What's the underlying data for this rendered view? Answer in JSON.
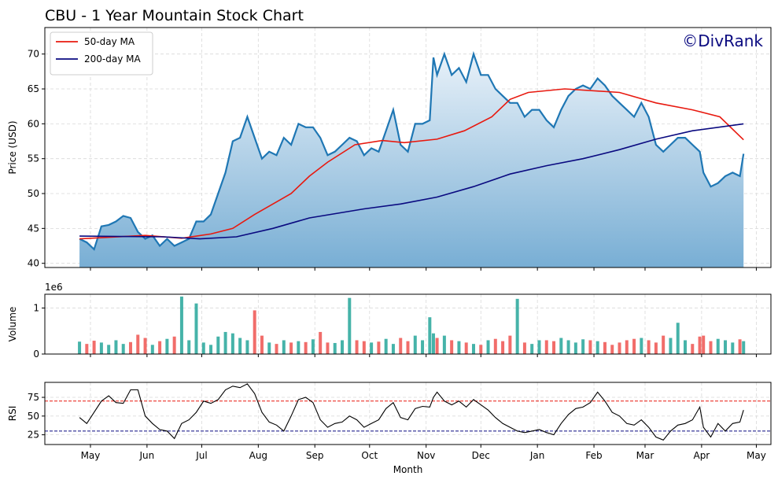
{
  "chart_data": [
    {
      "type": "line",
      "title": "CBU - 1 Year Mountain Stock Chart",
      "watermark": "©DivRank",
      "ylabel": "Price (USD)",
      "xlim": [
        -25,
        373
      ],
      "xticks": [
        0,
        31,
        61,
        92,
        123,
        153,
        184,
        214,
        245,
        276,
        304,
        335,
        365
      ],
      "ylim": [
        39.4,
        73.8
      ],
      "yticks": [
        40,
        45,
        50,
        55,
        60,
        65,
        70
      ],
      "grid": true,
      "legend": "upper left",
      "fill": true,
      "series": [
        {
          "color": "#1f77b4",
          "x": [
            -6,
            -2,
            2,
            6,
            10,
            14,
            18,
            22,
            26,
            30,
            34,
            38,
            42,
            46,
            50,
            54,
            58,
            62,
            66,
            70,
            74,
            78,
            82,
            86,
            90,
            94,
            98,
            102,
            106,
            110,
            114,
            118,
            122,
            126,
            130,
            134,
            138,
            142,
            146,
            150,
            154,
            158,
            162,
            166,
            170,
            174,
            178,
            182,
            186,
            188,
            190,
            194,
            198,
            202,
            206,
            210,
            214,
            218,
            222,
            226,
            230,
            234,
            238,
            242,
            246,
            250,
            254,
            258,
            262,
            266,
            270,
            274,
            278,
            282,
            286,
            290,
            294,
            298,
            302,
            306,
            310,
            314,
            318,
            322,
            326,
            330,
            334,
            336,
            340,
            344,
            348,
            352,
            356,
            358
          ],
          "values": [
            43.5,
            43,
            42,
            45.3,
            45.5,
            46,
            46.8,
            46.5,
            44.5,
            43.5,
            44,
            42.5,
            43.5,
            42.5,
            43,
            43.5,
            46,
            46,
            47,
            50,
            53,
            57.5,
            58,
            61,
            58,
            55,
            56,
            55.5,
            58,
            57,
            60,
            59.5,
            59.5,
            58,
            55.5,
            56,
            57,
            58,
            57.5,
            55.5,
            56.5,
            56,
            59,
            62,
            57,
            56,
            60,
            60,
            60.5,
            69.5,
            67,
            70,
            67,
            68,
            66,
            70,
            67,
            67,
            65,
            64,
            63,
            63,
            61,
            62,
            62,
            60.5,
            59.5,
            62,
            64,
            65,
            65.5,
            65,
            66.5,
            65.5,
            64,
            63,
            62,
            61,
            63,
            61,
            57,
            56,
            57,
            58,
            58,
            57,
            56,
            53,
            51,
            51.5,
            52.5,
            53,
            52.5,
            55.7
          ]
        },
        {
          "name": "50-day MA",
          "color": "#e8190f",
          "x": [
            -6,
            30,
            50,
            66,
            78,
            90,
            110,
            120,
            130,
            145,
            160,
            172,
            190,
            205,
            220,
            230,
            240,
            260,
            290,
            310,
            330,
            345,
            358
          ],
          "values": [
            43.5,
            44,
            43.6,
            44.2,
            45,
            47,
            50,
            52.5,
            54.5,
            57,
            57.6,
            57.3,
            57.8,
            59,
            61,
            63.5,
            64.5,
            65,
            64.5,
            63,
            62,
            61,
            57.7
          ]
        },
        {
          "name": "200-day MA",
          "color": "#0a0a80",
          "x": [
            -6,
            40,
            60,
            80,
            100,
            120,
            150,
            170,
            190,
            210,
            230,
            250,
            270,
            290,
            310,
            330,
            358
          ],
          "values": [
            43.9,
            43.8,
            43.5,
            43.8,
            45,
            46.5,
            47.8,
            48.5,
            49.5,
            51,
            52.8,
            54,
            55,
            56.3,
            57.8,
            59,
            60
          ]
        }
      ]
    },
    {
      "type": "bar",
      "ylabel": "Volume",
      "offset_label": "1e6",
      "up_color": "#26a69a",
      "down_color": "#ef5350",
      "xlim": [
        -25,
        373
      ],
      "xticks": [
        0,
        31,
        61,
        92,
        123,
        153,
        184,
        214,
        245,
        276,
        304,
        335,
        365
      ],
      "ylim": [
        0,
        1.3
      ],
      "yticks": [
        0,
        1
      ],
      "grid": true,
      "values": [
        0.27,
        0.22,
        0.29,
        0.25,
        0.2,
        0.3,
        0.22,
        0.26,
        0.42,
        0.35,
        0.2,
        0.28,
        0.33,
        0.38,
        1.25,
        0.3,
        1.1,
        0.25,
        0.2,
        0.38,
        0.48,
        0.45,
        0.35,
        0.3,
        0.95,
        0.4,
        0.25,
        0.22,
        0.3,
        0.25,
        0.28,
        0.26,
        0.32,
        0.48,
        0.25,
        0.24,
        0.3,
        1.22,
        0.3,
        0.28,
        0.25,
        0.27,
        0.33,
        0.22,
        0.35,
        0.28,
        0.4,
        0.3,
        0.8,
        0.45,
        0.35,
        0.4,
        0.3,
        0.28,
        0.25,
        0.22,
        0.2,
        0.3,
        0.33,
        0.28,
        0.4,
        1.2,
        0.25,
        0.22,
        0.3,
        0.3,
        0.28,
        0.35,
        0.3,
        0.25,
        0.32,
        0.3,
        0.28,
        0.26,
        0.2,
        0.25,
        0.3,
        0.33,
        0.35,
        0.3,
        0.25,
        0.4,
        0.35,
        0.68,
        0.3,
        0.22,
        0.38,
        0.4,
        0.28,
        0.33,
        0.3,
        0.25,
        0.32,
        0.28
      ]
    },
    {
      "type": "line",
      "ylabel": "RSI",
      "xlabel": "Month",
      "xlim": [
        -25,
        373
      ],
      "xticks": [
        {
          "value": 0,
          "label": "May"
        },
        {
          "value": 31,
          "label": "Jun"
        },
        {
          "value": 61,
          "label": "Jul"
        },
        {
          "value": 92,
          "label": "Aug"
        },
        {
          "value": 123,
          "label": "Sep"
        },
        {
          "value": 153,
          "label": "Oct"
        },
        {
          "value": 184,
          "label": "Nov"
        },
        {
          "value": 214,
          "label": "Dec"
        },
        {
          "value": 245,
          "label": "Jan"
        },
        {
          "value": 276,
          "label": "Feb"
        },
        {
          "value": 304,
          "label": "Mar"
        },
        {
          "value": 335,
          "label": "Apr"
        },
        {
          "value": 365,
          "label": "May"
        }
      ],
      "ylim": [
        12,
        95
      ],
      "yticks": [
        25,
        50,
        75
      ],
      "grid": true,
      "hlines": [
        {
          "value": 70,
          "color": "#e8190f"
        },
        {
          "value": 30,
          "color": "#0a0a80"
        }
      ],
      "series": [
        {
          "color": "#000000",
          "values": [
            48,
            40,
            55,
            70,
            77,
            68,
            67,
            85,
            85,
            50,
            40,
            32,
            30,
            20,
            40,
            45,
            55,
            70,
            67,
            72,
            85,
            90,
            88,
            93,
            80,
            55,
            42,
            38,
            30,
            50,
            72,
            75,
            68,
            45,
            35,
            40,
            42,
            50,
            45,
            35,
            40,
            45,
            60,
            68,
            48,
            45,
            60,
            63,
            62,
            75,
            82,
            70,
            65,
            70,
            62,
            72,
            65,
            58,
            48,
            40,
            35,
            30,
            28,
            30,
            32,
            28,
            25,
            40,
            52,
            60,
            62,
            68,
            82,
            70,
            55,
            50,
            40,
            38,
            45,
            35,
            22,
            18,
            30,
            38,
            40,
            45,
            62,
            35,
            22,
            40,
            30,
            40,
            42,
            58
          ]
        }
      ]
    }
  ]
}
